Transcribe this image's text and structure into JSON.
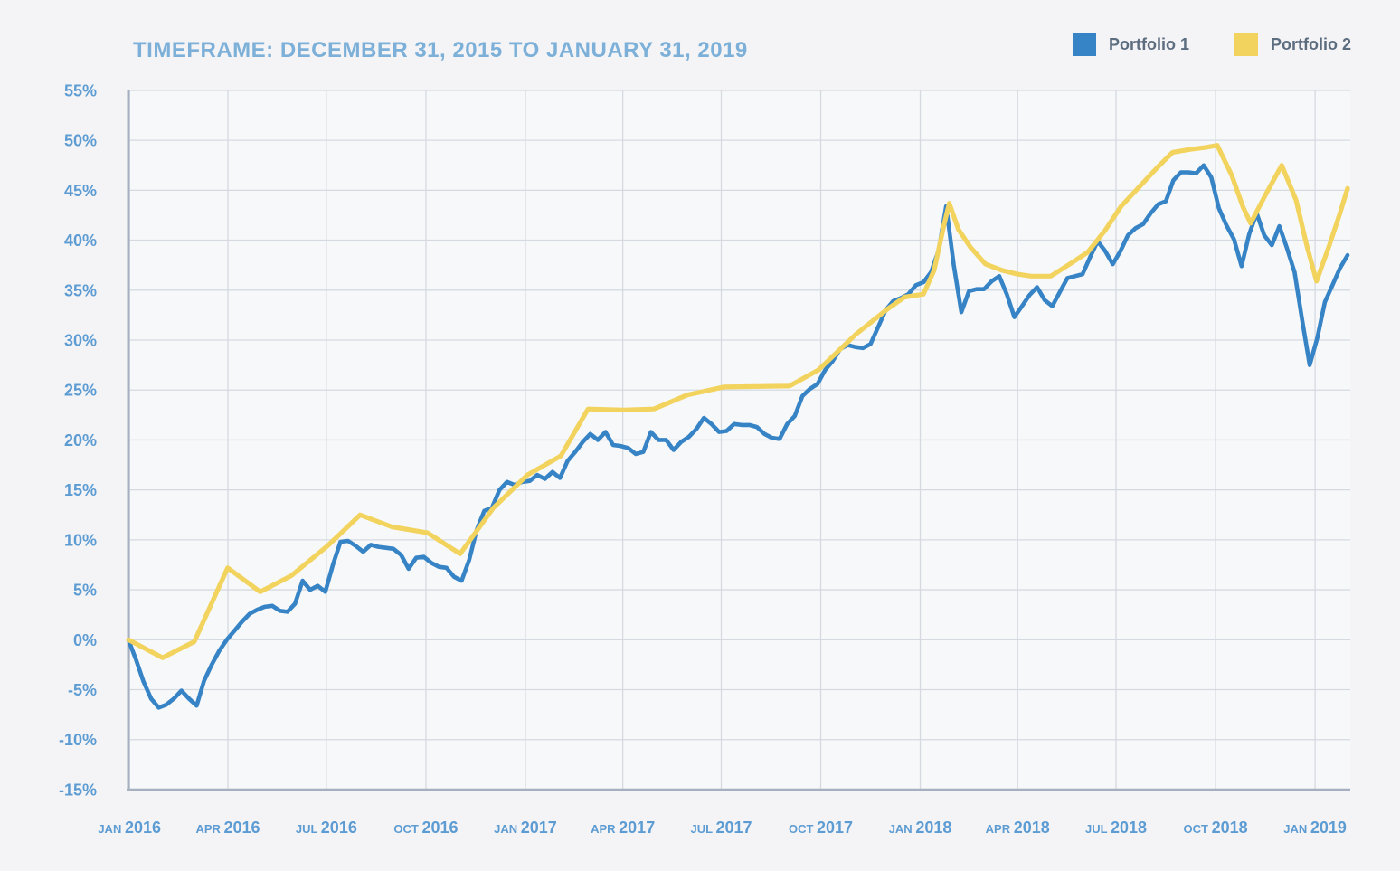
{
  "title": "TIMEFRAME: DECEMBER 31, 2015 TO JANUARY 31, 2019",
  "colors": {
    "portfolio1": "#3683c5",
    "portfolio2": "#f2d35e",
    "title_text": "#7cb0d8",
    "axis_label": "#5d9cd3",
    "legend_text": "#5d6d80",
    "grid": "#d5dae1",
    "axis_line": "#a6b0c0",
    "page_bg": "#f4f4f6",
    "plot_bg": "#f7f8f9"
  },
  "legend": {
    "items": [
      {
        "label": "Portfolio 1",
        "color_key": "portfolio1"
      },
      {
        "label": "Portfolio 2",
        "color_key": "portfolio2"
      }
    ]
  },
  "chart_data": {
    "type": "line",
    "title": "TIMEFRAME: DECEMBER 31, 2015 TO JANUARY 31, 2019",
    "x_unit": "weeks since 2015-12-31",
    "x_range_dates": [
      "2015-12-31",
      "2019-01-31"
    ],
    "x_range_weeks": [
      0,
      161
    ],
    "y_axis": {
      "unit": "%",
      "min": -15,
      "max": 55,
      "tick_step": 5,
      "tick_labels": [
        "55%",
        "50%",
        "45%",
        "40%",
        "35%",
        "30%",
        "25%",
        "20%",
        "15%",
        "10%",
        "5%",
        "0%",
        "-5%",
        "-10%",
        "-15%"
      ],
      "tick_values": [
        55,
        50,
        45,
        40,
        35,
        30,
        25,
        20,
        15,
        10,
        5,
        0,
        -5,
        -10,
        -15
      ]
    },
    "x_ticks": [
      {
        "month": "JAN",
        "year": "2016",
        "week": 0.14
      },
      {
        "month": "APR",
        "year": "2016",
        "week": 13.14
      },
      {
        "month": "JUL",
        "year": "2016",
        "week": 26.14
      },
      {
        "month": "OCT",
        "year": "2016",
        "week": 39.29
      },
      {
        "month": "JAN",
        "year": "2017",
        "week": 52.43
      },
      {
        "month": "APR",
        "year": "2017",
        "week": 65.29
      },
      {
        "month": "JUL",
        "year": "2017",
        "week": 78.29
      },
      {
        "month": "OCT",
        "year": "2017",
        "week": 91.43
      },
      {
        "month": "JAN",
        "year": "2018",
        "week": 104.57
      },
      {
        "month": "APR",
        "year": "2018",
        "week": 117.43
      },
      {
        "month": "JUL",
        "year": "2018",
        "week": 130.43
      },
      {
        "month": "OCT",
        "year": "2018",
        "week": 143.57
      },
      {
        "month": "JAN",
        "year": "2019",
        "week": 156.71
      }
    ],
    "grid": true,
    "legend_position": "top-right",
    "series": [
      {
        "name": "Portfolio 1",
        "color_key": "portfolio1",
        "cadence": "weekly",
        "start_week": 0,
        "unit": "%",
        "values": [
          0.0,
          -2.0,
          -4.2,
          -5.9,
          -6.8,
          -6.5,
          -5.9,
          -5.1,
          -5.9,
          -6.6,
          -4.1,
          -2.5,
          -1.1,
          0.0,
          0.9,
          1.8,
          2.6,
          3.0,
          3.3,
          3.4,
          2.9,
          2.8,
          3.6,
          5.9,
          5.0,
          5.4,
          4.8,
          7.5,
          9.8,
          9.9,
          9.4,
          8.8,
          9.5,
          9.3,
          9.2,
          9.1,
          8.5,
          7.1,
          8.2,
          8.3,
          7.7,
          7.3,
          7.2,
          6.3,
          5.9,
          8.0,
          11.0,
          12.9,
          13.2,
          15.0,
          15.8,
          15.5,
          15.8,
          15.9,
          16.5,
          16.1,
          16.8,
          16.2,
          17.9,
          18.8,
          19.8,
          20.6,
          20.0,
          20.8,
          19.5,
          19.4,
          19.2,
          18.6,
          18.8,
          20.8,
          20.0,
          20.0,
          19.0,
          19.8,
          20.3,
          21.1,
          22.2,
          21.6,
          20.8,
          20.9,
          21.6,
          21.5,
          21.5,
          21.3,
          20.6,
          20.2,
          20.1,
          21.6,
          22.4,
          24.4,
          25.1,
          25.6,
          27.0,
          27.9,
          29.1,
          29.5,
          29.3,
          29.2,
          29.6,
          31.3,
          33.0,
          33.9,
          34.2,
          34.6,
          35.5,
          35.8,
          36.8,
          39.0,
          43.4,
          37.5,
          32.8,
          34.9,
          35.1,
          35.1,
          35.9,
          36.4,
          34.6,
          32.3,
          33.4,
          34.5,
          35.3,
          34.0,
          33.4,
          34.8,
          36.2,
          36.4,
          36.6,
          38.3,
          39.9,
          38.9,
          37.6,
          38.9,
          40.5,
          41.2,
          41.6,
          42.7,
          43.6,
          43.9,
          46.0,
          46.8,
          46.8,
          46.7,
          47.5,
          46.3,
          43.2,
          41.5,
          40.1,
          37.4,
          40.6,
          42.7,
          40.5,
          39.5,
          41.4,
          39.2,
          36.8,
          32.0,
          27.5,
          30.2,
          33.8,
          35.5,
          37.2,
          38.5
        ]
      },
      {
        "name": "Portfolio 2",
        "color_key": "portfolio2",
        "cadence": "keypoints",
        "unit": "%",
        "points": [
          [
            0,
            0.0
          ],
          [
            4.5,
            -1.8
          ],
          [
            8.7,
            -0.2
          ],
          [
            13.1,
            7.2
          ],
          [
            17.4,
            4.8
          ],
          [
            21.5,
            6.4
          ],
          [
            26.3,
            9.4
          ],
          [
            30.6,
            12.5
          ],
          [
            34.8,
            11.3
          ],
          [
            39.5,
            10.7
          ],
          [
            43.8,
            8.6
          ],
          [
            48.2,
            13.2
          ],
          [
            52.7,
            16.5
          ],
          [
            57.1,
            18.4
          ],
          [
            60.7,
            23.1
          ],
          [
            65.4,
            23.0
          ],
          [
            69.4,
            23.1
          ],
          [
            73.8,
            24.5
          ],
          [
            78.6,
            25.3
          ],
          [
            87.3,
            25.4
          ],
          [
            91.1,
            27.0
          ],
          [
            96.1,
            30.6
          ],
          [
            100.4,
            33.2
          ],
          [
            102.5,
            34.3
          ],
          [
            105.0,
            34.6
          ],
          [
            106.4,
            37.0
          ],
          [
            107.7,
            41.5
          ],
          [
            108.4,
            43.7
          ],
          [
            109.6,
            41.1
          ],
          [
            111.2,
            39.3
          ],
          [
            113.2,
            37.6
          ],
          [
            115.3,
            37.0
          ],
          [
            117.4,
            36.6
          ],
          [
            119.2,
            36.4
          ],
          [
            121.8,
            36.4
          ],
          [
            124.3,
            37.6
          ],
          [
            126.7,
            38.8
          ],
          [
            129.0,
            41.0
          ],
          [
            131.1,
            43.4
          ],
          [
            133.7,
            45.5
          ],
          [
            135.9,
            47.3
          ],
          [
            137.9,
            48.8
          ],
          [
            140.3,
            49.1
          ],
          [
            142.3,
            49.3
          ],
          [
            143.8,
            49.5
          ],
          [
            145.7,
            46.5
          ],
          [
            147.2,
            43.3
          ],
          [
            148.2,
            41.7
          ],
          [
            150.2,
            44.6
          ],
          [
            152.3,
            47.5
          ],
          [
            154.2,
            44.0
          ],
          [
            155.6,
            39.5
          ],
          [
            156.9,
            35.9
          ],
          [
            158.6,
            39.5
          ],
          [
            160.0,
            42.7
          ],
          [
            161.0,
            45.2
          ]
        ]
      }
    ]
  }
}
